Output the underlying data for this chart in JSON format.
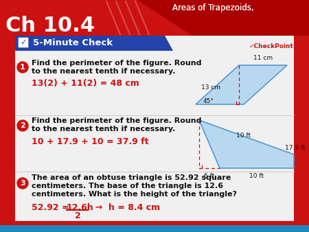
{
  "title": "Ch 10.4",
  "header_title": "Areas of Trapezoids,",
  "outer_bg": "#cc1111",
  "inner_bg": "#f0f0f0",
  "section_header_bg": "#2244aa",
  "section_header_text": "5-Minute Check",
  "q1_text_line1": "Find the perimeter of the figure. Round",
  "q1_text_line2": "to the nearest tenth if necessary.",
  "q1_answer": "13(2) + 11(2) = 48 cm",
  "q2_text_line1": "Find the perimeter of the figure. Round",
  "q2_text_line2": "to the nearest tenth if necessary.",
  "q2_answer": "10 + 17.9 + 10 = 37.9 ft",
  "q3_text_line1": "The area of an obtuse triangle is 52.92 square",
  "q3_text_line2": "centimeters. The base of the triangle is 12.6",
  "q3_text_line3": "centimeters. What is the height of the triangle?",
  "q3_ans_pre": "52.92 = ",
  "q3_ans_frac": "12.6h",
  "q3_ans_post": "  →  h = 8.4 cm",
  "q3_ans_denom": "2",
  "answer_color": "#cc1111",
  "label_bg": "#cc1111",
  "text_color": "#111111",
  "shape_fill": "#b8d8f0",
  "shape_edge": "#5599cc",
  "dashed_color": "#cc1111",
  "bottom_bar_color": "#2288bb",
  "header_right_bg": "#aa1111",
  "checkpoint_color": "#cc1111"
}
